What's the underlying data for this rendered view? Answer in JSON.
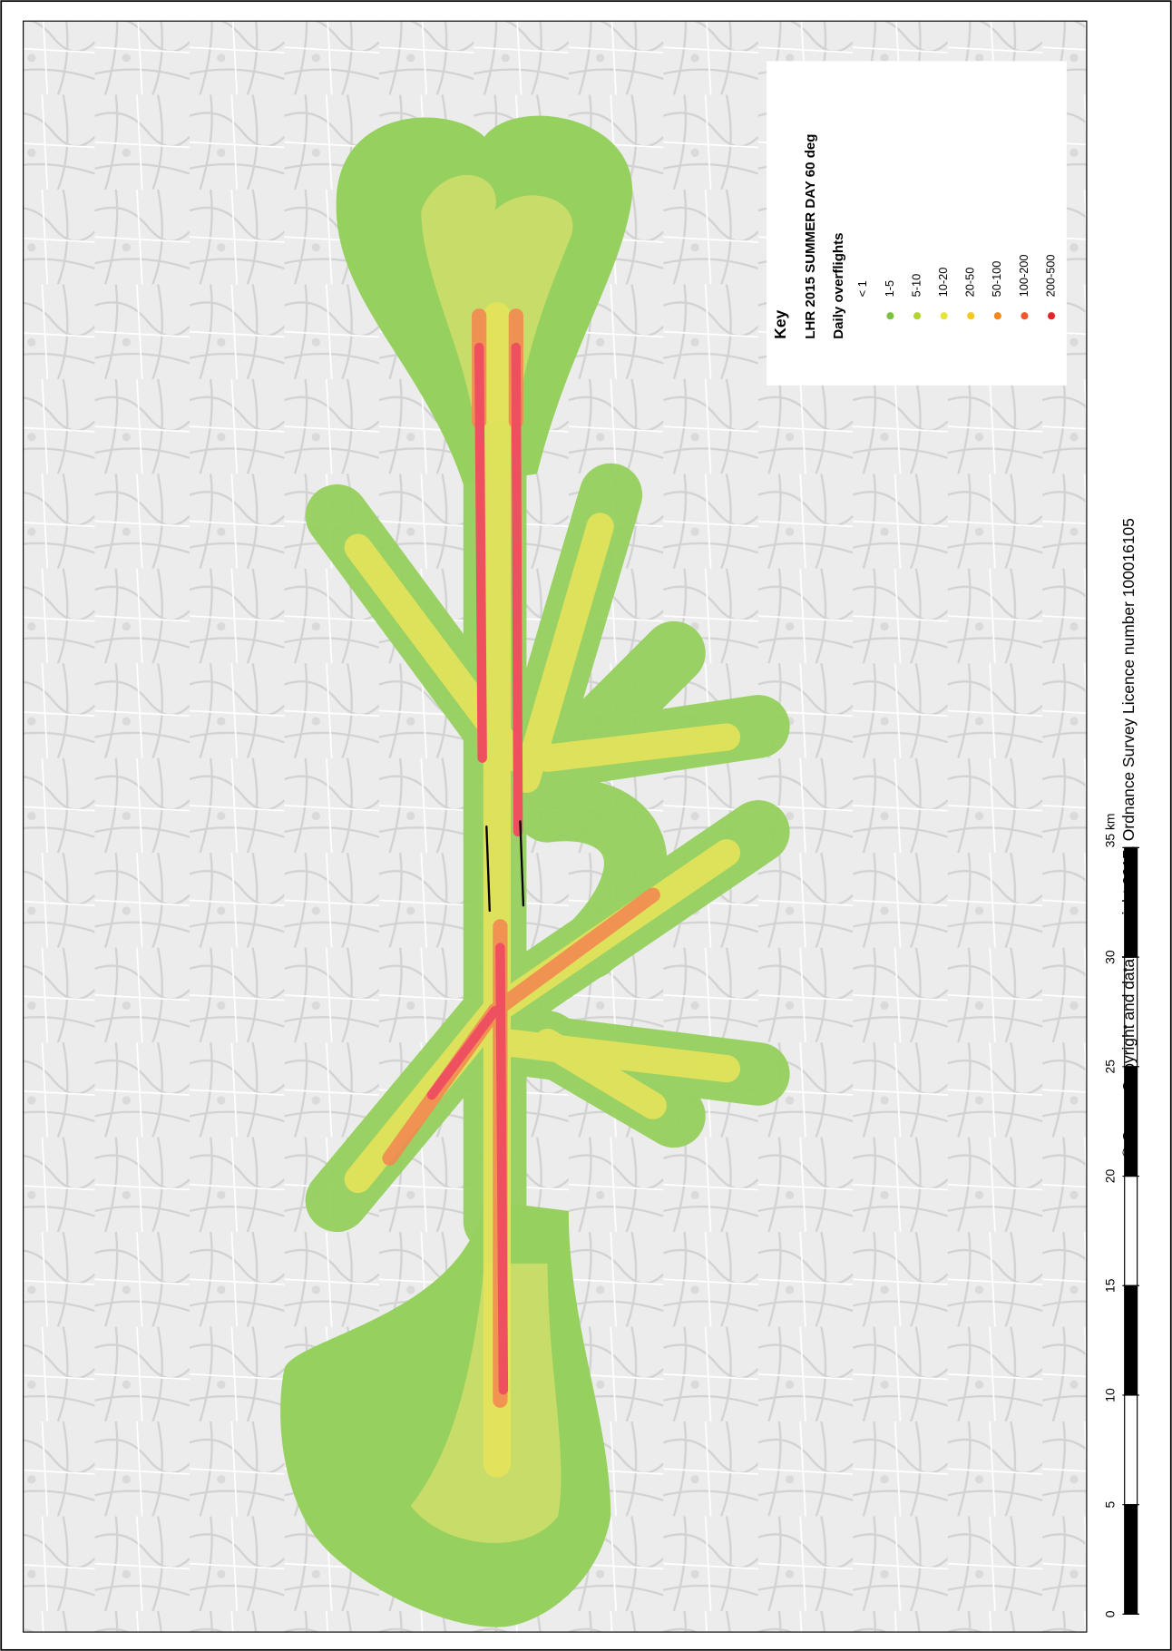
{
  "key": {
    "title": "Key",
    "subtitle": "LHR 2015 SUMMER DAY 60 deg",
    "heading": "Daily overflights",
    "items": [
      {
        "label": "< 1"
      },
      {
        "label": "1-5",
        "color": "#7cc242"
      },
      {
        "label": "5-10",
        "color": "#b3d335"
      },
      {
        "label": "10-20",
        "color": "#e6e33a"
      },
      {
        "label": "20-50",
        "color": "#f6c81b"
      },
      {
        "label": "50-100",
        "color": "#f08a1f"
      },
      {
        "label": "100-200",
        "color": "#f0572a"
      },
      {
        "label": "200-500",
        "color": "#e5232b"
      }
    ]
  },
  "scale_bar": {
    "ticks": [
      0,
      5,
      10,
      15,
      20,
      25,
      30,
      {
        "value": 35,
        "label": "35 km"
      }
    ]
  },
  "copyright": "© Crown Copyright and database right 2017. Ordnance Survey Licence number 100016105"
}
